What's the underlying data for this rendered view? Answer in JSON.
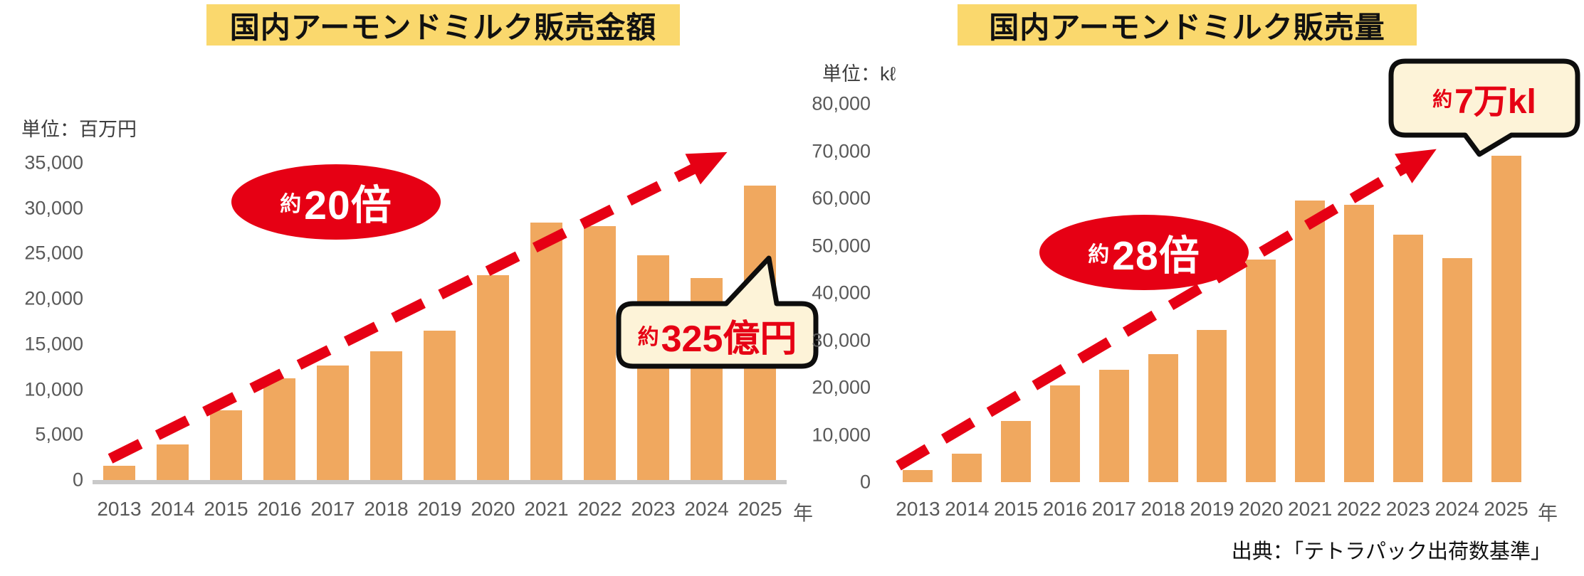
{
  "source": "出典：「テトラパック出荷数基準」",
  "colors": {
    "bar": "#F0A85F",
    "accent_red": "#E60014",
    "title_background": "#FAD86D",
    "callout_background": "#FDF3D8",
    "axis_text": "#595959",
    "baseline": "#C9C9C9"
  },
  "chart_data": [
    {
      "type": "bar",
      "title": "国内アーモンドミルク販売金額",
      "unit_label": "単位：百万円",
      "x_suffix": "年",
      "categories": [
        "2013",
        "2014",
        "2015",
        "2016",
        "2017",
        "2018",
        "2019",
        "2020",
        "2021",
        "2022",
        "2023",
        "2024",
        "2025"
      ],
      "values": [
        1600,
        3900,
        7700,
        11200,
        12600,
        14200,
        16500,
        22600,
        28400,
        28000,
        24800,
        22300,
        32500
      ],
      "ylim": [
        0,
        35000
      ],
      "ytick_step": 5000,
      "yticks": [
        "35,000",
        "30,000",
        "25,000",
        "20,000",
        "15,000",
        "10,000",
        "5,000",
        "0"
      ],
      "grid": false,
      "legend": false,
      "badge": {
        "prefix": "約",
        "value": "20倍"
      },
      "callout": {
        "prefix": "約",
        "value": "325億円"
      }
    },
    {
      "type": "bar",
      "title": "国内アーモンドミルク販売量",
      "unit_label": "単位：kℓ",
      "x_suffix": "年",
      "categories": [
        "2013",
        "2014",
        "2015",
        "2016",
        "2017",
        "2018",
        "2019",
        "2020",
        "2021",
        "2022",
        "2023",
        "2024",
        "2025"
      ],
      "values": [
        2500,
        6000,
        12900,
        20500,
        23800,
        27000,
        32200,
        47000,
        59600,
        58600,
        52400,
        47400,
        69000
      ],
      "ylim": [
        0,
        80000
      ],
      "ytick_step": 10000,
      "yticks": [
        "80,000",
        "70,000",
        "60,000",
        "50,000",
        "40,000",
        "30,000",
        "20,000",
        "10,000",
        "0"
      ],
      "grid": false,
      "legend": false,
      "badge": {
        "prefix": "約",
        "value": "28倍"
      },
      "callout": {
        "prefix": "約",
        "value": "7万kl"
      }
    }
  ]
}
